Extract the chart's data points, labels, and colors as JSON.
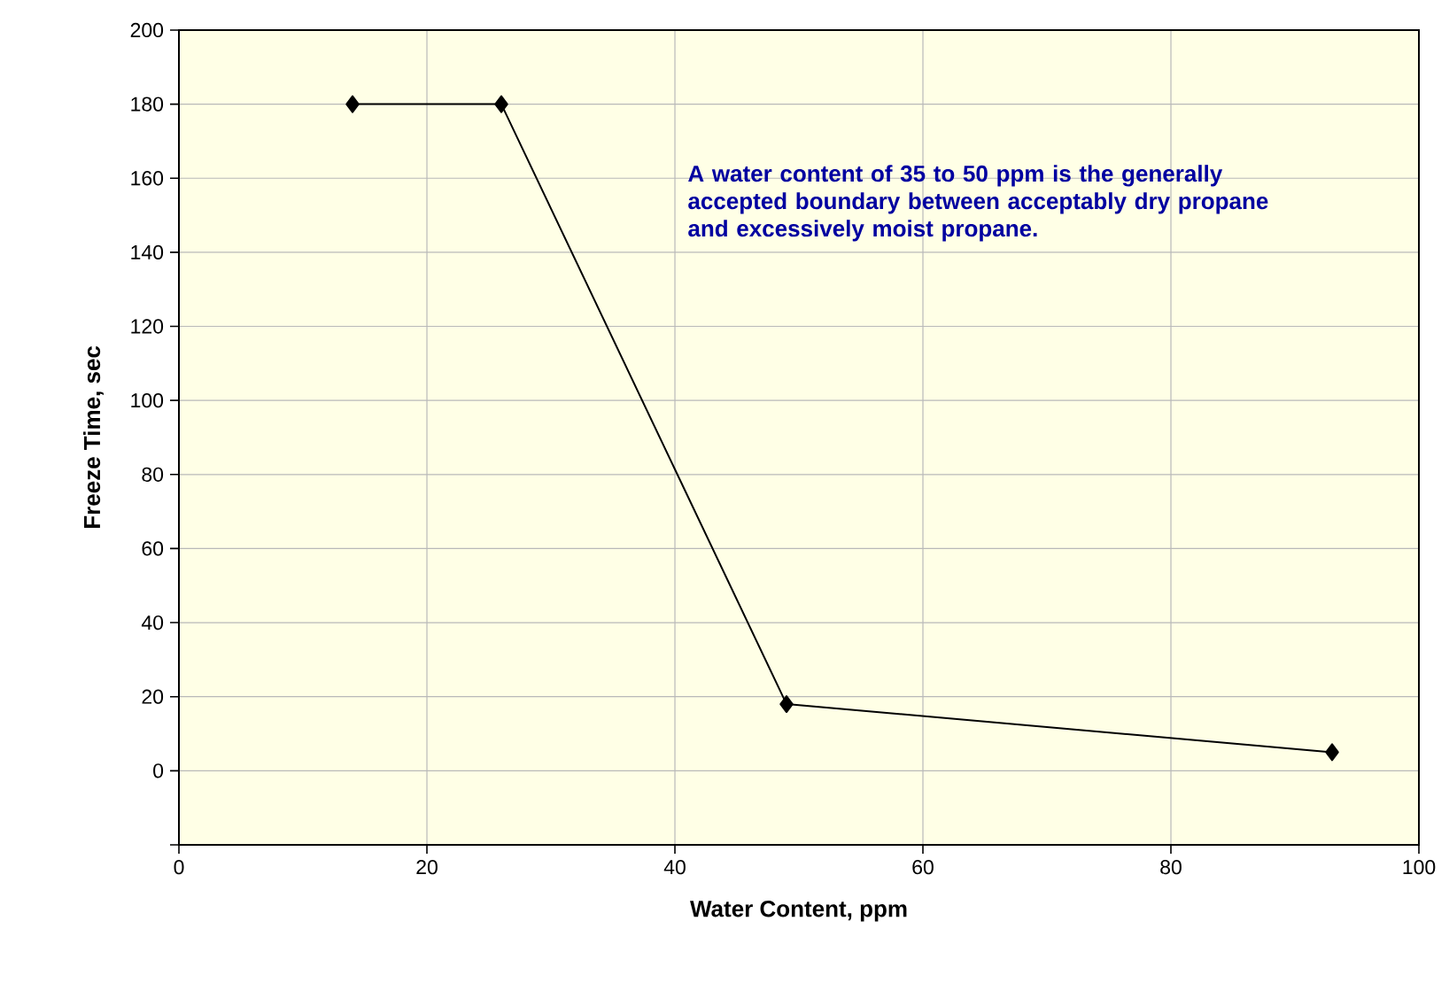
{
  "chart_data": {
    "type": "line",
    "xlabel": "Water Content, ppm",
    "ylabel": "Freeze Time, sec",
    "x": [
      14,
      26,
      49,
      93
    ],
    "series": [
      {
        "color": "#000000",
        "values": [
          180,
          180,
          18,
          5
        ]
      }
    ],
    "xlim": [
      0,
      100
    ],
    "xticks": [
      0,
      20,
      40,
      60,
      80,
      100
    ],
    "ylim": [
      -20,
      200
    ],
    "yticks": [
      {
        "value": -20,
        "label": null
      },
      0,
      20,
      40,
      60,
      80,
      100,
      120,
      140,
      160,
      180,
      200
    ],
    "grid": true,
    "marker": "diamond",
    "line_style": "solid",
    "annotations": [
      "A water content of 35 to 50 ppm is the generally accepted boundary between acceptably dry propane and excessively moist propane."
    ]
  }
}
